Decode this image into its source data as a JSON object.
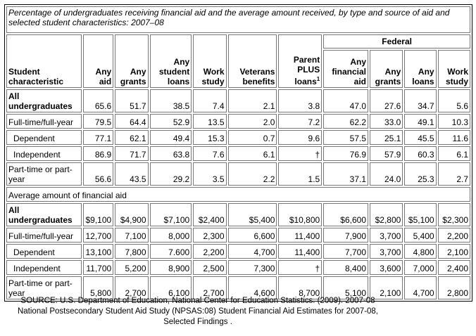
{
  "caption": "Percentage of undergraduates receiving financial aid and the average amount received, by type and source of aid and selected student characteristics: 2007–08",
  "headers": {
    "student": "Student characteristic",
    "federal": "Federal",
    "columns": [
      {
        "label": "Any aid"
      },
      {
        "label": "Any grants"
      },
      {
        "label": "Any student loans"
      },
      {
        "label": "Work study"
      },
      {
        "label": "Veterans benefits"
      },
      {
        "label": "Parent PLUS loans",
        "sup": "1"
      },
      {
        "label": "Any financial aid"
      },
      {
        "label": "Any grants"
      },
      {
        "label": "Any loans"
      },
      {
        "label": "Work study"
      }
    ]
  },
  "percent_rows": [
    {
      "label": "All undergraduates",
      "bold": true,
      "values": [
        "65.6",
        "51.7",
        "38.5",
        "7.4",
        "2.1",
        "3.8",
        "47.0",
        "27.6",
        "34.7",
        "5.6"
      ]
    },
    {
      "label": "Full-time/full-year",
      "values": [
        "79.5",
        "64.4",
        "52.9",
        "13.5",
        "2.0",
        "7.2",
        "62.2",
        "33.0",
        "49.1",
        "10.3"
      ]
    },
    {
      "label": "Dependent",
      "indent": true,
      "values": [
        "77.1",
        "62.1",
        "49.4",
        "15.3",
        "0.7",
        "9.6",
        "57.5",
        "25.1",
        "45.5",
        "11.6"
      ]
    },
    {
      "label": "Independent",
      "indent": true,
      "values": [
        "86.9",
        "71.7",
        "63.8",
        "7.6",
        "6.1",
        "†",
        "76.9",
        "57.9",
        "60.3",
        "6.1"
      ]
    },
    {
      "label": "Part-time or part-year",
      "values": [
        "56.6",
        "43.5",
        "29.2",
        "3.5",
        "2.2",
        "1.5",
        "37.1",
        "24.0",
        "25.3",
        "2.7"
      ]
    }
  ],
  "amount_section": "Average amount of financial aid",
  "amount_rows": [
    {
      "label": "All undergraduates",
      "bold": true,
      "values": [
        "$9,100",
        "$4,900",
        "$7,100",
        "$2,400",
        "$5,400",
        "$10,800",
        "$6,600",
        "$2,800",
        "$5,100",
        "$2,300"
      ]
    },
    {
      "label": "Full-time/full-year",
      "values": [
        "12,700",
        "7,100",
        "8,000",
        "2,300",
        "6,600",
        "11,400",
        "7,900",
        "3,700",
        "5,400",
        "2,200"
      ]
    },
    {
      "label": "Dependent",
      "indent": true,
      "values": [
        "13,100",
        "7,800",
        "7.600",
        "2,200",
        "4,700",
        "11,400",
        "7,700",
        "3,700",
        "4,800",
        "2,100"
      ]
    },
    {
      "label": "Independent",
      "indent": true,
      "values": [
        "11,700",
        "5,200",
        "8,900",
        "2,500",
        "7,300",
        "†",
        "8,400",
        "3,600",
        "7,000",
        "2,400"
      ]
    },
    {
      "label": "Part-time or part-year",
      "values": [
        "5,800",
        "2,700",
        "6,100",
        "2,700",
        "4,600",
        "8,700",
        "5,100",
        "2,100",
        "4,700",
        "2,800"
      ]
    }
  ],
  "source": [
    "SOURCE: U.S. Department of Education, National Center for Education Statistics. (2009). 2007-08",
    "National Postsecondary Student Aid Study (NPSAS:08) Student Financial Aid Estimates for 2007-08,",
    "Selected Findings ."
  ]
}
